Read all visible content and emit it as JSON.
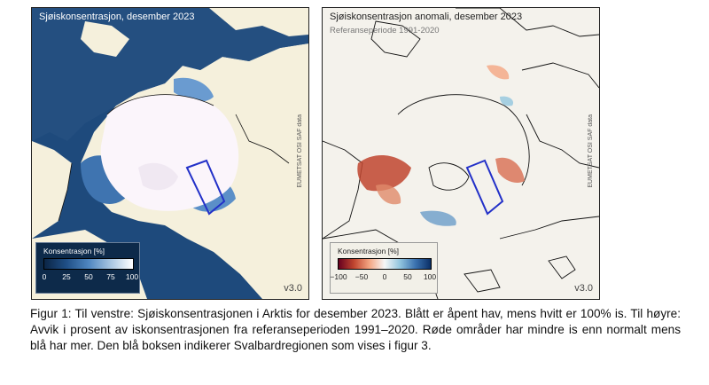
{
  "panels": {
    "left": {
      "title": "Sjøiskonsentrasjon, desember 2023",
      "credit": "EUMETSAT OSI SAF data",
      "version": "v3.0",
      "legend": {
        "title": "Konsentrasjon [%]",
        "ticks": [
          "0",
          "25",
          "50",
          "75",
          "100"
        ]
      },
      "colors": {
        "ocean": "#1e4a7c",
        "land": "#f5f0dc",
        "ice": "#fbf5fb"
      }
    },
    "right": {
      "title": "Sjøiskonsentrasjon anomali, desember 2023",
      "subtitle": "Referanseperiode 1991-2020",
      "credit": "EUMETSAT OSI SAF data",
      "version": "v3.0",
      "legend": {
        "title": "Konsentrasjon [%]",
        "ticks": [
          "−100",
          "−50",
          "0",
          "50",
          "100"
        ]
      },
      "colors": {
        "ocean": "#f4f2ec",
        "land": "#f4f2ec",
        "negative": "#c0452f",
        "positive": "#3b72b0"
      }
    }
  },
  "caption": "Figur 1: Til venstre: Sjøiskonsentrasjonen i Arktis for desember 2023. Blått er åpent hav, mens hvitt er 100% is. Til høyre: Avvik i prosent av iskonsentrasjonen fra referanseperioden 1991–2020. Røde områder har mindre is enn normalt mens blå har mer. Den blå boksen indikerer Svalbardregionen som vises i figur 3."
}
